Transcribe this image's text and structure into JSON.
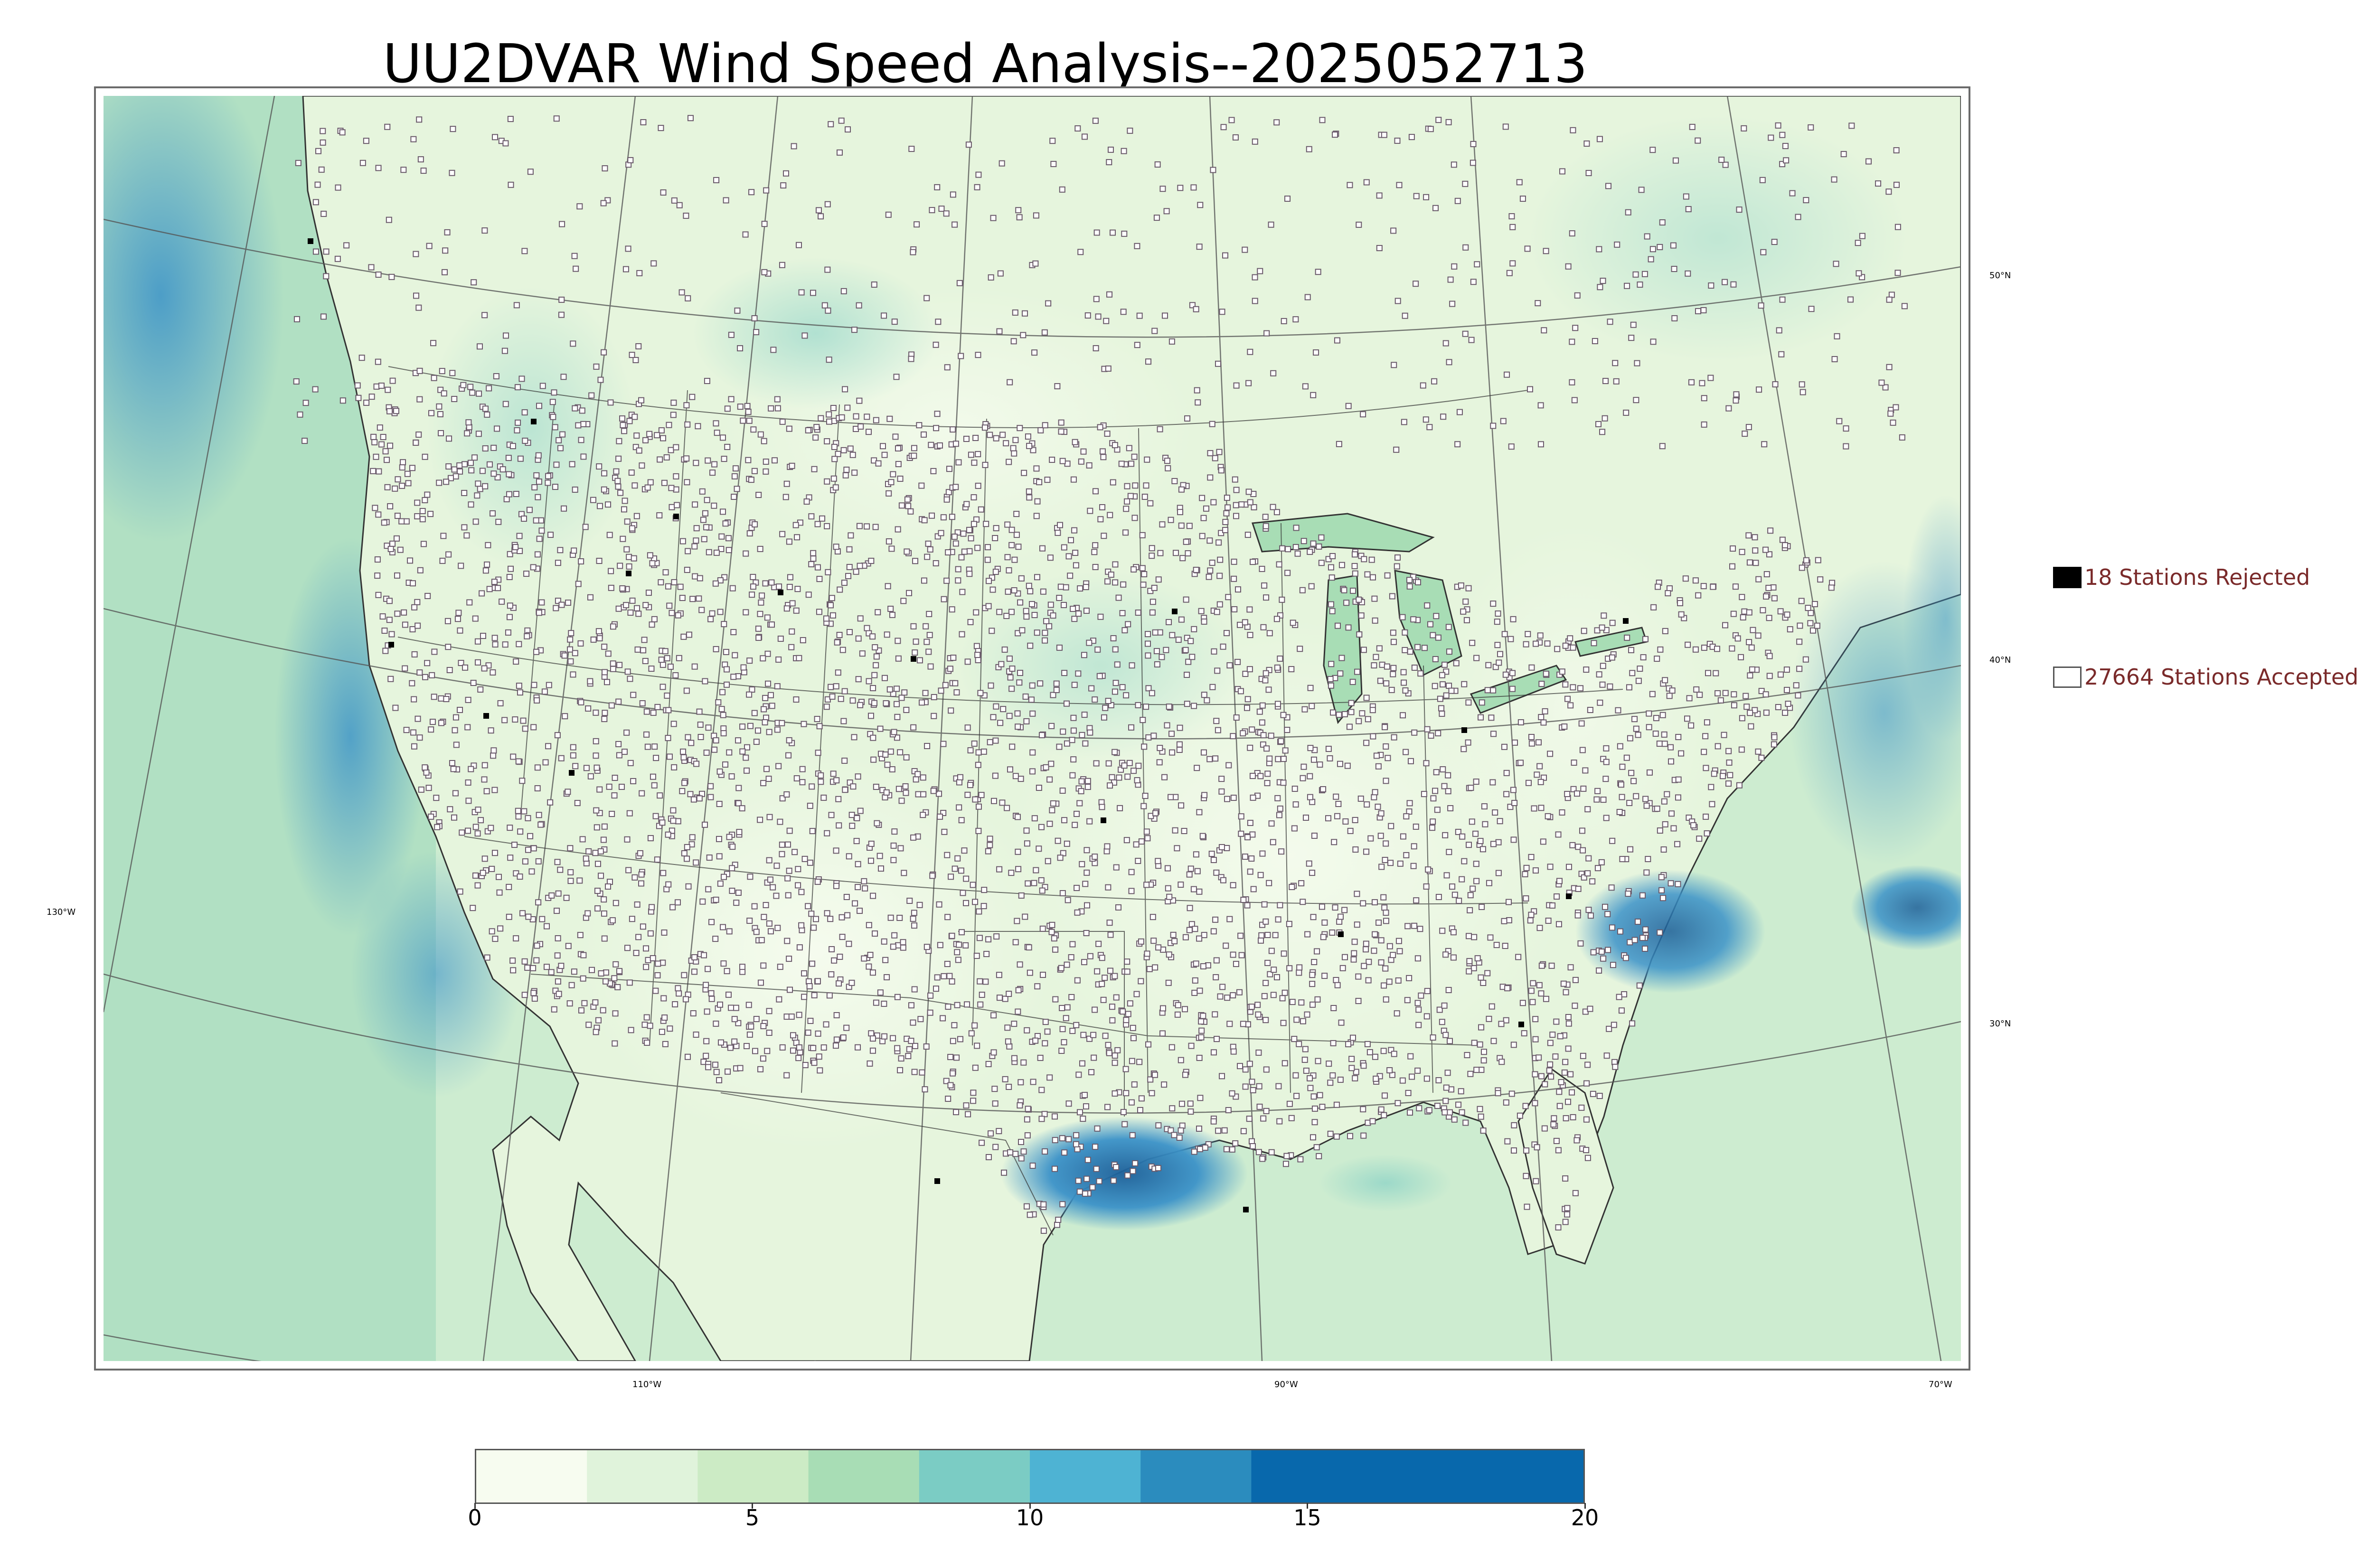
{
  "title": "UU2DVAR Wind Speed Analysis--2025052713",
  "map": {
    "longitude_labels": [
      "130°W",
      "110°W",
      "90°W",
      "70°W"
    ],
    "latitude_labels": [
      "50°N",
      "40°N",
      "30°N"
    ],
    "colors": {
      "land_base": "#eaf6e2",
      "ocean_base": "#b9e4c6",
      "high_wind": "#3b92c8",
      "very_high_wind": "#1c5f99",
      "station_accepted": "#ffffff",
      "station_rejected": "#000000",
      "boundary": "#333333"
    }
  },
  "legend": {
    "rejected_label": "18 Stations Rejected",
    "accepted_label": "27664 Stations Accepted",
    "rejected_color": "#000000",
    "accepted_color": "#ffffff"
  },
  "colorbar": {
    "min": 0,
    "max": 20,
    "ticks": [
      "0",
      "5",
      "10",
      "15",
      "20"
    ],
    "colors": [
      "#f7fcf0",
      "#e0f3db",
      "#ccebc5",
      "#a8ddb5",
      "#7bccc4",
      "#4eb3d3",
      "#2b8cbe",
      "#0868ac"
    ],
    "bounds": [
      0,
      2,
      4,
      6,
      8,
      10,
      12,
      14,
      20
    ]
  }
}
